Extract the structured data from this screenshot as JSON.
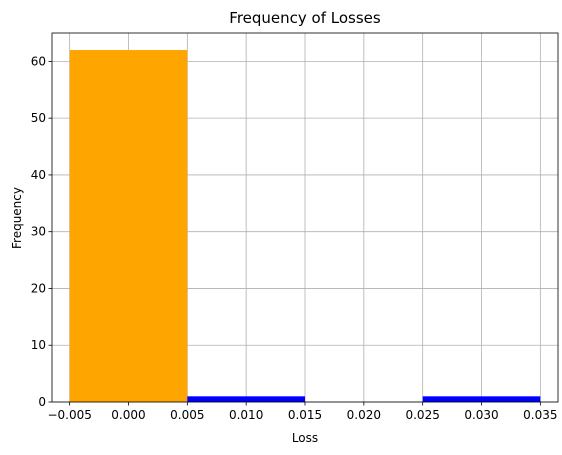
{
  "chart_data": {
    "type": "bar",
    "title": "Frequency of Losses",
    "xlabel": "Loss",
    "ylabel": "Frequency",
    "xlim": [
      -0.0065,
      0.0365
    ],
    "ylim": [
      0,
      65
    ],
    "xticks": [
      -0.005,
      0.0,
      0.005,
      0.01,
      0.015,
      0.02,
      0.025,
      0.03,
      0.035
    ],
    "xtick_labels": [
      "−0.005",
      "0.000",
      "0.005",
      "0.010",
      "0.015",
      "0.020",
      "0.025",
      "0.030",
      "0.035"
    ],
    "yticks": [
      0,
      10,
      20,
      30,
      40,
      50,
      60
    ],
    "ytick_labels": [
      "0",
      "10",
      "20",
      "30",
      "40",
      "50",
      "60"
    ],
    "grid": true,
    "bins": [
      {
        "x0": -0.005,
        "x1": 0.005,
        "value": 62,
        "color": "#FFA500"
      },
      {
        "x0": 0.005,
        "x1": 0.015,
        "value": 1,
        "color": "#0000FF"
      },
      {
        "x0": 0.015,
        "x1": 0.025,
        "value": 0,
        "color": "#0000FF"
      },
      {
        "x0": 0.025,
        "x1": 0.035,
        "value": 1,
        "color": "#0000FF"
      }
    ]
  }
}
